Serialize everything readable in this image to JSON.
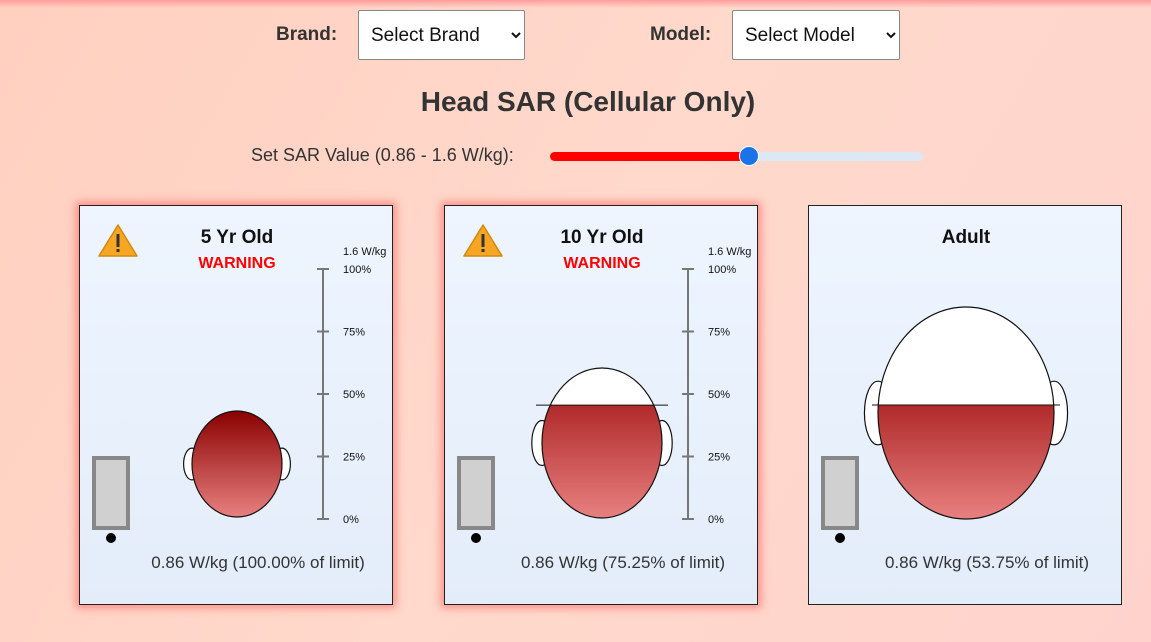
{
  "filters": {
    "brand_label": "Brand:",
    "brand_select": "Select Brand",
    "model_label": "Model:",
    "model_select": "Select Model"
  },
  "title": "Head SAR (Cellular Only)",
  "slider_label": "Set SAR Value (0.86 - 1.6 W/kg):",
  "panels": [
    {
      "title": "5 Yr Old",
      "warning": "WARNING",
      "scale_max": "1.6 W/kg",
      "scale_ticks": [
        "100%",
        "75%",
        "50%",
        "25%",
        "0%"
      ],
      "reading": "0.86 W/kg (100.00% of limit)"
    },
    {
      "title": "10 Yr Old",
      "warning": "WARNING",
      "scale_max": "1.6 W/kg",
      "scale_ticks": [
        "100%",
        "75%",
        "50%",
        "25%",
        "0%"
      ],
      "reading": "0.86 W/kg (75.25% of limit)"
    },
    {
      "title": "Adult",
      "reading": "0.86 W/kg (53.75% of limit)"
    }
  ]
}
